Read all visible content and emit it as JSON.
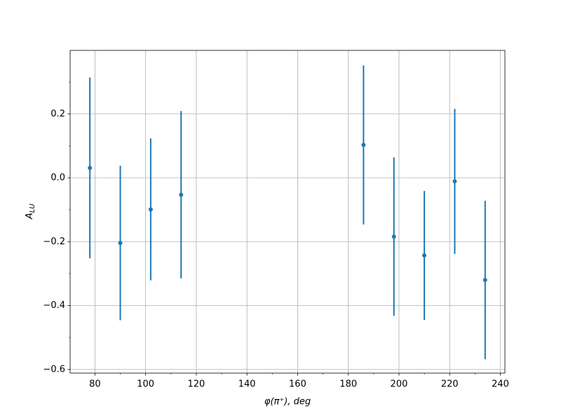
{
  "chart_data": {
    "type": "errorbar",
    "xlabel": "φ(π⁺), deg",
    "ylabel": "A",
    "ylabel_sub": "LU",
    "x": [
      78,
      90,
      102,
      114,
      186,
      198,
      210,
      222,
      234
    ],
    "series": [
      {
        "color": "#1f77b4",
        "values": [
          0.031,
          -0.204,
          -0.099,
          -0.053,
          0.103,
          -0.184,
          -0.243,
          -0.011,
          -0.32
        ],
        "errors": [
          0.283,
          0.242,
          0.222,
          0.262,
          0.249,
          0.248,
          0.202,
          0.227,
          0.248
        ]
      }
    ],
    "xlim": [
      70.2,
      241.8
    ],
    "ylim": [
      -0.6115,
      0.399
    ],
    "xticks": [
      80,
      100,
      120,
      140,
      160,
      180,
      200,
      220,
      240
    ],
    "yticks": [
      {
        "value": 0.2,
        "label": "0.2"
      },
      {
        "value": 0,
        "label": "0.0"
      },
      {
        "value": -0.2,
        "label": "−0.2"
      },
      {
        "value": -0.4,
        "label": "−0.4"
      },
      {
        "value": -0.6,
        "label": "−0.6"
      }
    ],
    "xminorticks": [
      90,
      110,
      130,
      150,
      170,
      190,
      210,
      230
    ],
    "yminorticks": [
      0.3,
      0.1,
      -0.1,
      -0.3,
      -0.5
    ],
    "grid": true
  }
}
